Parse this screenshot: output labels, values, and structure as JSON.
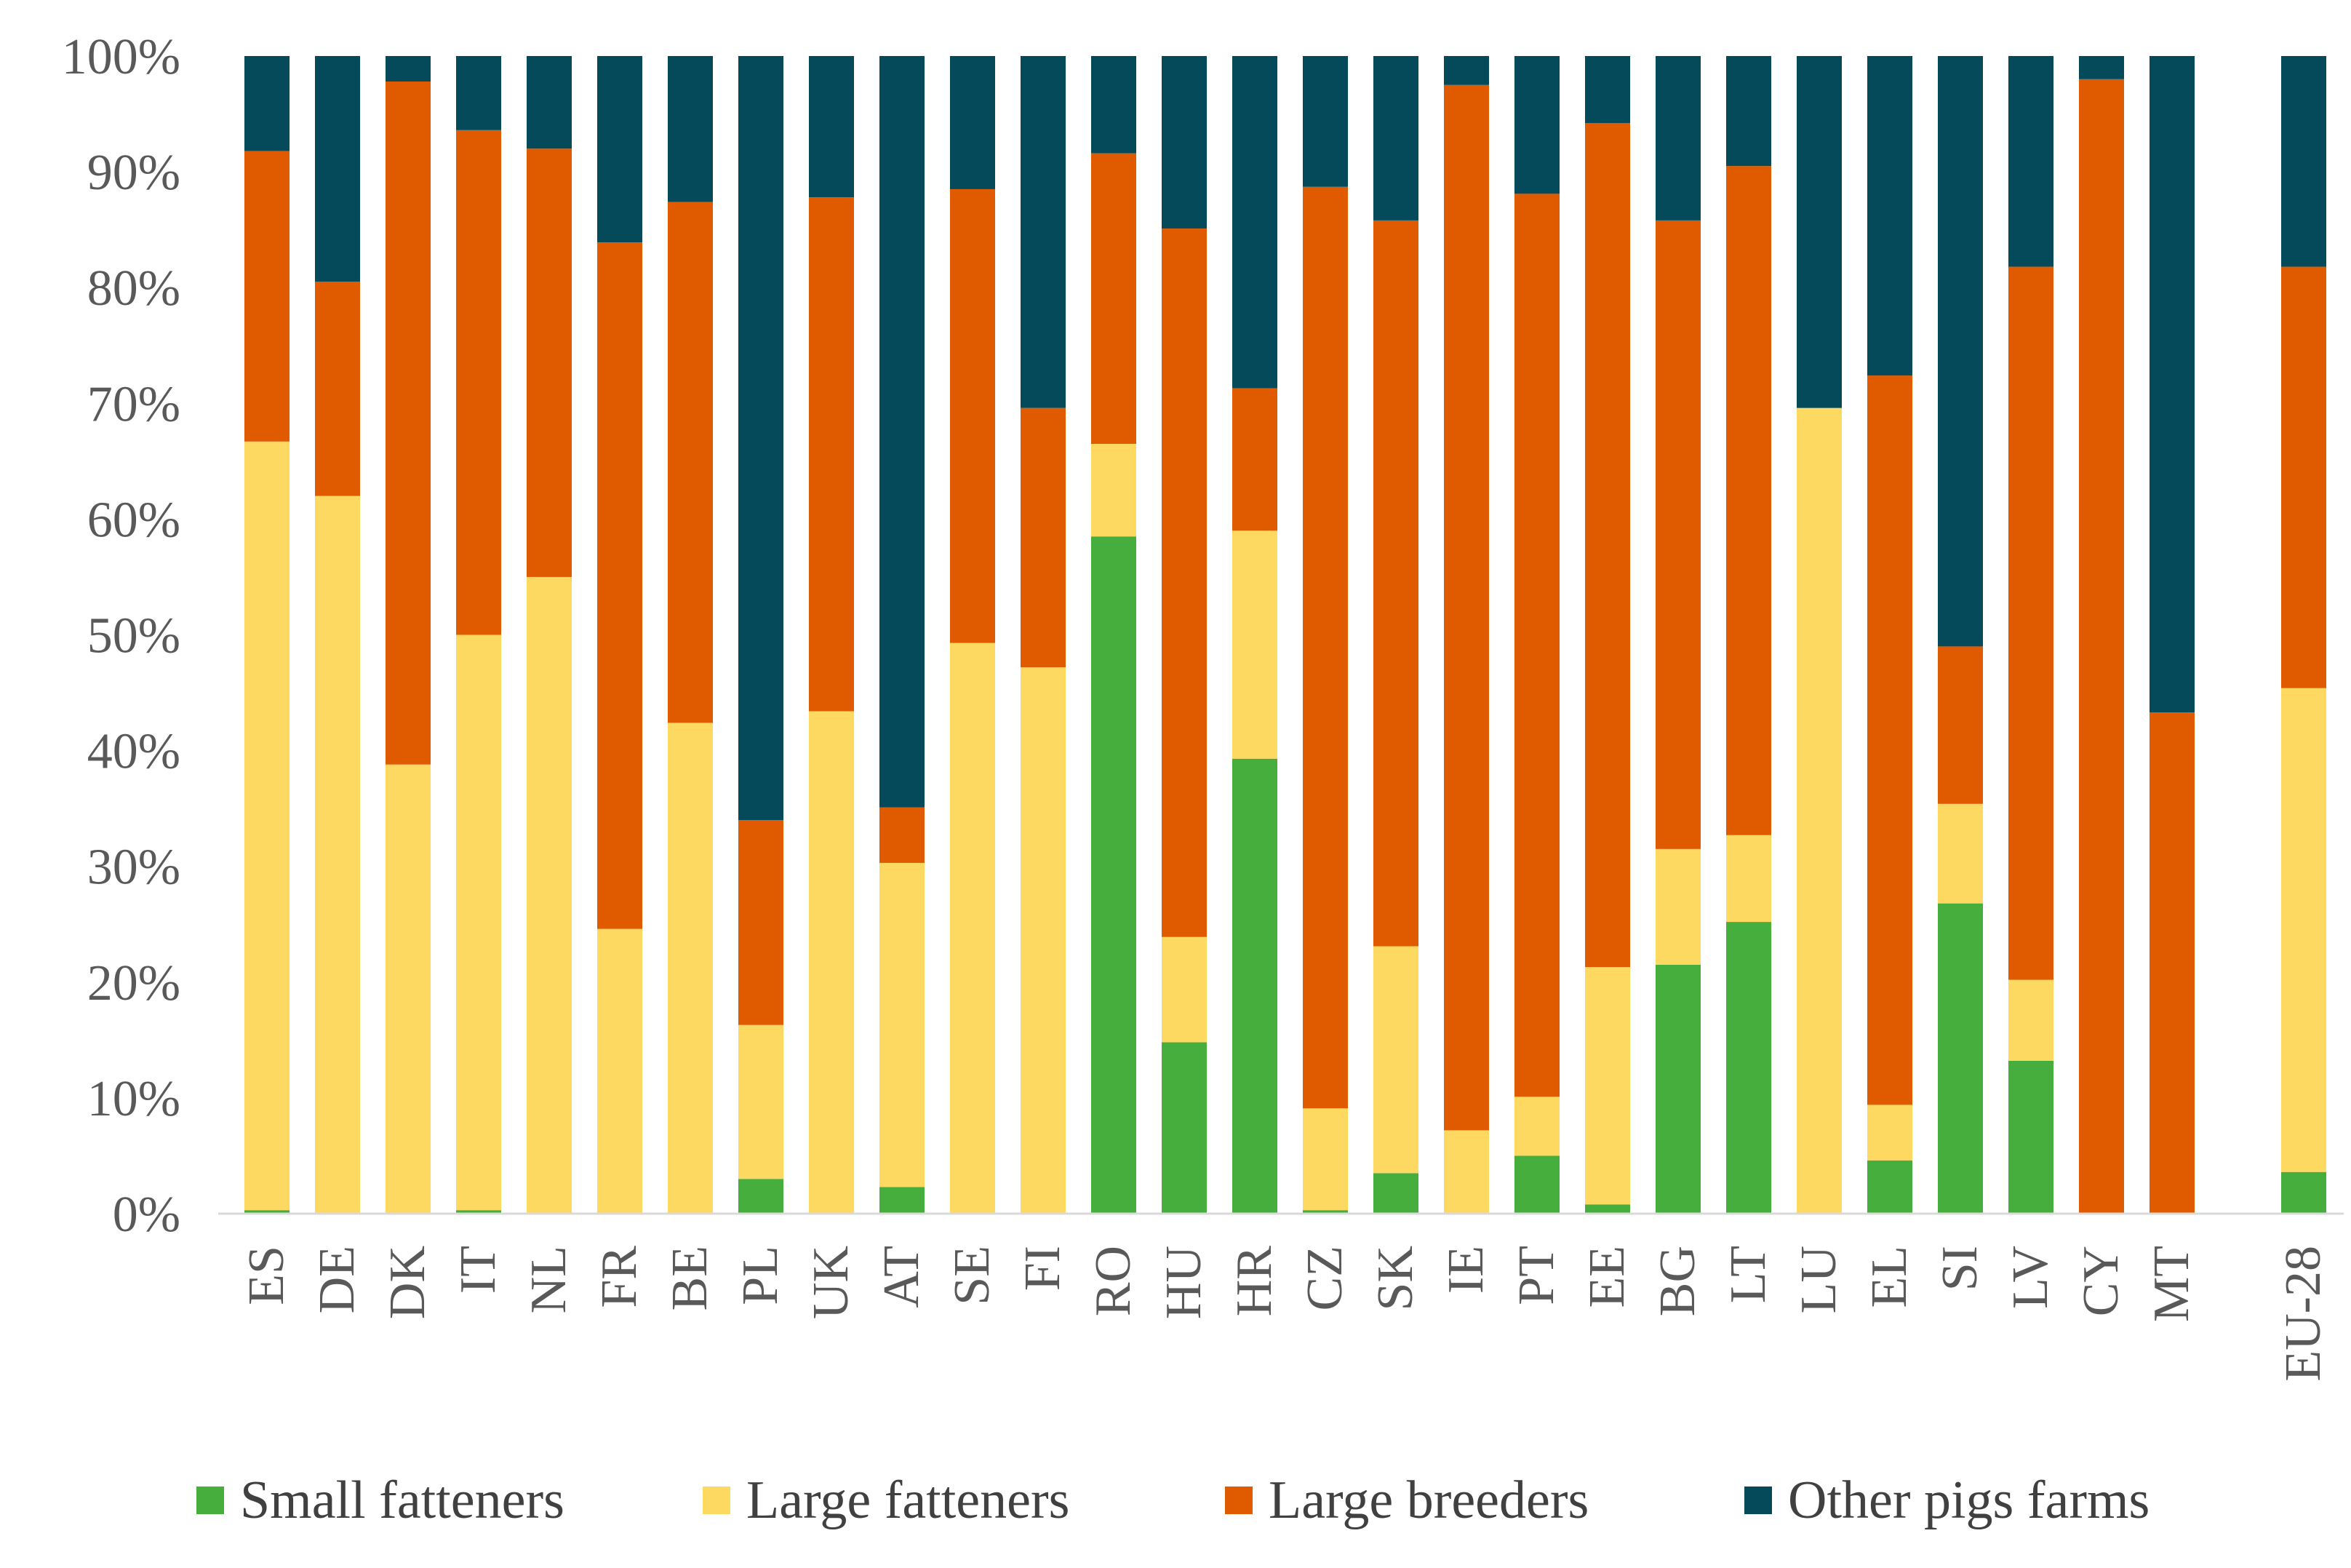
{
  "chart_data": {
    "type": "bar",
    "stacked": true,
    "title": "",
    "xlabel": "",
    "ylabel": "",
    "ylim": [
      0,
      100
    ],
    "yticks": [
      "0%",
      "10%",
      "20%",
      "30%",
      "40%",
      "50%",
      "60%",
      "70%",
      "80%",
      "90%",
      "100%"
    ],
    "grid": false,
    "legend_position": "bottom",
    "categories": [
      "ES",
      "DE",
      "DK",
      "IT",
      "NL",
      "FR",
      "BE",
      "PL",
      "UK",
      "AT",
      "SE",
      "FI",
      "RO",
      "HU",
      "HR",
      "CZ",
      "SK",
      "IE",
      "PT",
      "EE",
      "BG",
      "LT",
      "LU",
      "EL",
      "SI",
      "LV",
      "CY",
      "MT",
      "EU-28"
    ],
    "series": [
      {
        "name": "Small fatteners",
        "color": "#46AE3C",
        "values": [
          0.3,
          0,
          0,
          0.3,
          0,
          0,
          0,
          3,
          0,
          2.3,
          0,
          0,
          58.5,
          14.8,
          39.3,
          0.3,
          3.5,
          0,
          5,
          0.8,
          21.5,
          25.2,
          0,
          4.6,
          26.8,
          13.2,
          0,
          0,
          3.6
        ]
      },
      {
        "name": "Large fatteners",
        "color": "#FDD962",
        "values": [
          66.4,
          62,
          38.8,
          49.7,
          55,
          24.6,
          42.4,
          13.3,
          43.4,
          28,
          49.3,
          47.2,
          8,
          9.1,
          19.7,
          8.8,
          19.6,
          7.2,
          5.1,
          20.5,
          10,
          7.5,
          69.6,
          4.8,
          8.6,
          7,
          0,
          0,
          41.8
        ]
      },
      {
        "name": "Large breeders",
        "color": "#E05A00",
        "values": [
          25.1,
          18.5,
          59,
          43.6,
          37,
          59.3,
          45,
          17.7,
          44.4,
          4.8,
          39.2,
          22.4,
          25.1,
          61.2,
          12.3,
          79.6,
          62.7,
          90.3,
          78,
          72.9,
          54.3,
          57.8,
          0,
          63,
          13.6,
          61.6,
          98,
          43.3,
          36.4
        ]
      },
      {
        "name": "Other pigs farms",
        "color": "#044A5A",
        "values": [
          8.2,
          19.5,
          2.2,
          6.4,
          8,
          16.1,
          12.6,
          66,
          12.2,
          64.9,
          11.5,
          30.4,
          8.4,
          14.9,
          28.7,
          11.3,
          14.2,
          2.5,
          11.9,
          5.8,
          14.2,
          9.5,
          30.4,
          27.6,
          51,
          18.2,
          2,
          56.7,
          18.2
        ]
      }
    ]
  }
}
